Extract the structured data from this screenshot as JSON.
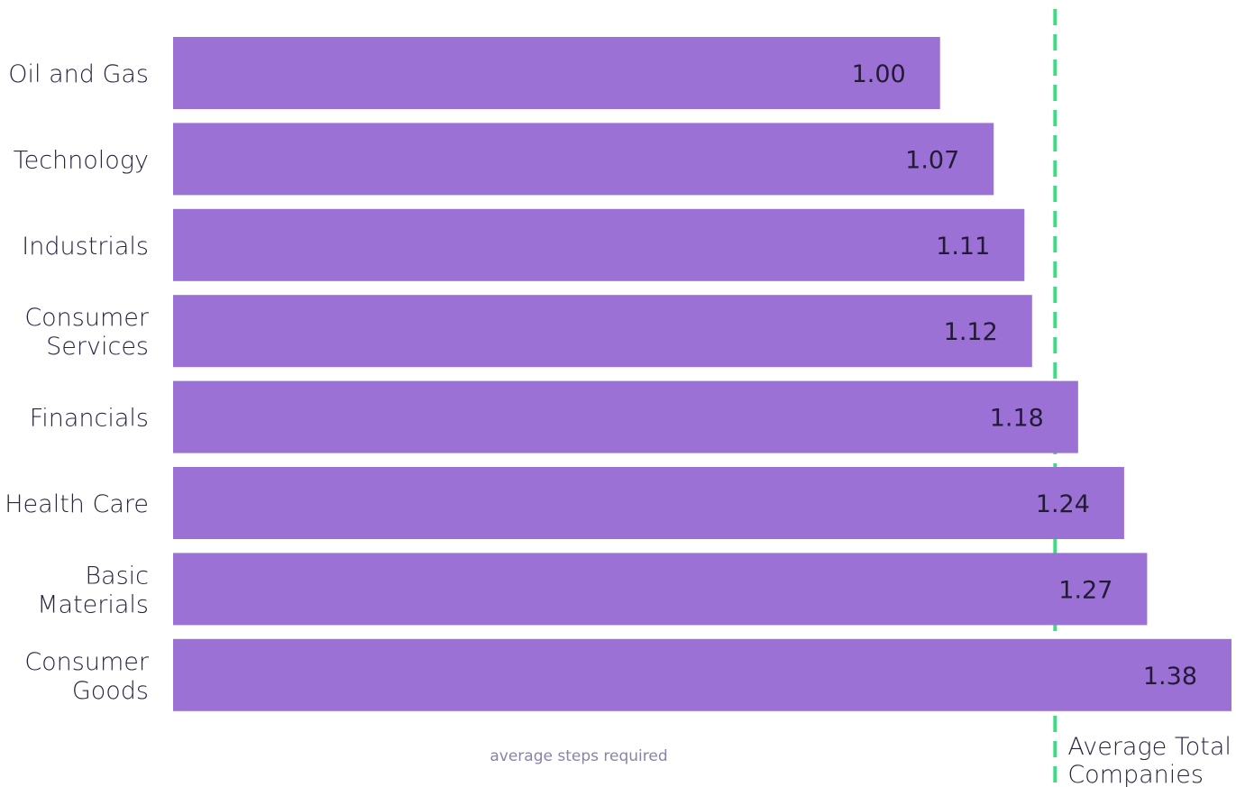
{
  "chart_data": {
    "type": "bar",
    "orientation": "horizontal",
    "categories": [
      "Oil and Gas",
      "Technology",
      "Industrials",
      "Consumer Services",
      "Financials",
      "Health Care",
      "Basic Materials",
      "Consumer Goods"
    ],
    "category_lines": [
      [
        "Oil and Gas"
      ],
      [
        "Technology"
      ],
      [
        "Industrials"
      ],
      [
        "Consumer",
        "Services"
      ],
      [
        "Financials"
      ],
      [
        "Health Care"
      ],
      [
        "Basic",
        "Materials"
      ],
      [
        "Consumer",
        "Goods"
      ]
    ],
    "values": [
      1.0,
      1.07,
      1.11,
      1.12,
      1.18,
      1.24,
      1.27,
      1.38
    ],
    "value_labels": [
      "1.00",
      "1.07",
      "1.11",
      "1.12",
      "1.18",
      "1.24",
      "1.27",
      "1.38"
    ],
    "xlabel": "average steps required",
    "ylabel": "",
    "xlim": [
      0,
      1.38
    ],
    "grid": false,
    "reference_line": {
      "value": 1.15,
      "label_lines": [
        "Average Total",
        "Companies"
      ],
      "style": "dashed"
    },
    "colors": {
      "bar": "#9b71d6",
      "reference_line": "#3ddc84",
      "value_text": "#231a36"
    }
  }
}
